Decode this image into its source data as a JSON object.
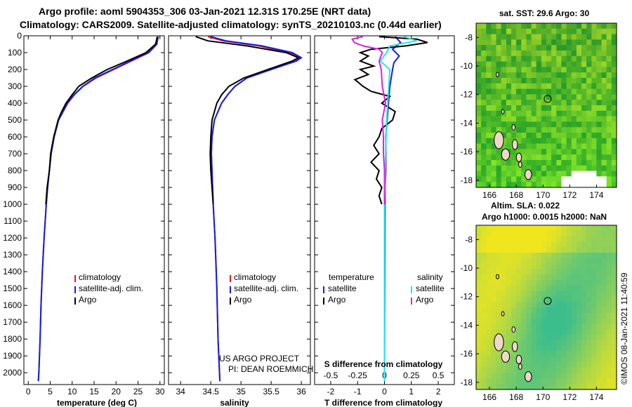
{
  "title_line1": "Argo profile: aoml 5904353_306 03-Jan-2021 12.31S 170.25E (NRT data)",
  "title_line2": "Climatology: CARS2009. Satellite-adjusted climatology: synTS_20210103.nc (0.44d earlier)",
  "credit": "©IMOS 08-Jan-2021 11:40:59",
  "project_line1": "US ARGO PROJECT",
  "project_line2": "PI: DEAN ROEMMICH",
  "colors": {
    "argo": "#000000",
    "climatology": "#e8182a",
    "satellite": "#1020e0",
    "sal_satellite": "#20e8f0",
    "sal_argo": "#e020e0",
    "marker": "#000000"
  },
  "chart_data": [
    {
      "type": "line",
      "name": "temperature",
      "xlabel": "temperature (deg C)",
      "xlim": [
        -1,
        31
      ],
      "xticks": [
        0,
        5,
        10,
        15,
        20,
        25,
        30
      ],
      "ylim": [
        2070,
        0
      ],
      "yticks": [
        0,
        100,
        200,
        300,
        400,
        500,
        600,
        700,
        800,
        900,
        1000,
        1100,
        1200,
        1300,
        1400,
        1500,
        1600,
        1700,
        1800,
        1900,
        2000
      ],
      "legend": [
        "climatology",
        "satellite-adj. clim.",
        "Argo"
      ],
      "series": [
        {
          "name": "climatology",
          "color_key": "climatology",
          "depth": [
            5,
            50,
            100,
            150,
            200,
            250,
            300,
            350,
            400,
            500,
            600,
            700,
            800,
            900,
            1000,
            1200,
            1400,
            1600,
            1800,
            2000,
            2050
          ],
          "values": [
            29.6,
            29.3,
            27.5,
            23.5,
            19.5,
            15.5,
            12.5,
            10.5,
            9.0,
            6.9,
            5.9,
            5.2,
            4.8,
            4.4,
            4.1,
            3.6,
            3.2,
            2.9,
            2.7,
            2.4,
            2.3
          ]
        },
        {
          "name": "satellite-adj. clim.",
          "color_key": "satellite",
          "depth": [
            5,
            50,
            100,
            150,
            200,
            250,
            300,
            350,
            400,
            500,
            600,
            700,
            800,
            900,
            1000,
            1200,
            1400,
            1600,
            1800,
            2000,
            2050
          ],
          "values": [
            29.6,
            29.2,
            27.3,
            23.2,
            19.2,
            15.2,
            12.4,
            10.4,
            8.9,
            6.9,
            5.9,
            5.2,
            4.8,
            4.4,
            4.1,
            3.6,
            3.2,
            2.9,
            2.7,
            2.4,
            2.3
          ]
        },
        {
          "name": "Argo",
          "color_key": "argo",
          "depth": [
            5,
            50,
            100,
            150,
            200,
            250,
            300,
            350,
            400,
            450,
            500,
            600,
            700,
            800,
            900,
            1000
          ],
          "values": [
            29.4,
            29.0,
            26.8,
            22.5,
            18.0,
            14.5,
            11.5,
            10.0,
            8.6,
            7.6,
            6.8,
            5.8,
            5.1,
            4.8,
            4.3,
            4.0
          ]
        }
      ]
    },
    {
      "type": "line",
      "name": "salinity",
      "xlabel": "salinity",
      "xlim": [
        33.8,
        36.15
      ],
      "xticks": [
        34,
        34.5,
        35,
        35.5,
        36
      ],
      "xtick_labels": [
        "34",
        "34.5",
        "35",
        "35.5",
        "36"
      ],
      "ylim": [
        2070,
        0
      ],
      "legend": [
        "climatology",
        "satellite-adj. clim.",
        "Argo"
      ],
      "series": [
        {
          "name": "climatology",
          "color_key": "climatology",
          "depth": [
            5,
            30,
            60,
            100,
            130,
            150,
            200,
            250,
            300,
            350,
            400,
            500,
            600,
            700,
            800,
            1000,
            1200,
            1500,
            1800,
            2050
          ],
          "values": [
            34.45,
            34.7,
            35.3,
            35.8,
            35.98,
            35.9,
            35.5,
            35.1,
            34.9,
            34.78,
            34.68,
            34.56,
            34.52,
            34.51,
            34.52,
            34.54,
            34.57,
            34.6,
            34.62,
            34.65
          ]
        },
        {
          "name": "satellite-adj. clim.",
          "color_key": "satellite",
          "depth": [
            5,
            30,
            60,
            100,
            130,
            150,
            200,
            250,
            300,
            350,
            400,
            500,
            600,
            700,
            800,
            1000,
            1200,
            1500,
            1800,
            2050
          ],
          "values": [
            34.5,
            34.75,
            35.35,
            35.85,
            36.0,
            35.92,
            35.5,
            35.1,
            34.9,
            34.78,
            34.68,
            34.56,
            34.52,
            34.51,
            34.52,
            34.54,
            34.57,
            34.6,
            34.62,
            34.65
          ]
        },
        {
          "name": "Argo",
          "color_key": "argo",
          "depth": [
            5,
            30,
            60,
            100,
            130,
            150,
            200,
            250,
            300,
            350,
            400,
            500,
            600,
            700,
            800,
            900,
            1000
          ],
          "values": [
            34.25,
            34.45,
            35.1,
            35.75,
            35.95,
            35.85,
            35.45,
            35.05,
            34.8,
            34.68,
            34.6,
            34.52,
            34.5,
            34.49,
            34.5,
            34.52,
            34.54
          ]
        }
      ]
    },
    {
      "type": "line",
      "name": "difference",
      "xlabel": "T difference from climatology",
      "xlabel_top": "S difference from climatology",
      "xlim": [
        -2.6,
        2.6
      ],
      "xticks": [
        -2,
        -1,
        0,
        1,
        2
      ],
      "s_ticks": [
        -0.5,
        -0.25,
        0,
        0.25,
        0.5
      ],
      "s_tick_labels": [
        "-0.5",
        "-0.25",
        "0",
        "0.25",
        "0.5"
      ],
      "ylim": [
        2070,
        0
      ],
      "legend_left_title": "temperature",
      "legend_right_title": "salinity",
      "legend_left": [
        "satellite",
        "Argo"
      ],
      "legend_right": [
        "satellite",
        "Argo"
      ],
      "series": [
        {
          "name": "T satellite",
          "color_key": "satellite",
          "depth": [
            5,
            40,
            80,
            120,
            160,
            200,
            300,
            400,
            500,
            600,
            700,
            800,
            900,
            1000,
            1500,
            2050
          ],
          "values": [
            0.4,
            0.6,
            0.3,
            0.55,
            0.35,
            0.3,
            0.2,
            0.15,
            0.1,
            0.05,
            0.05,
            0.05,
            0.02,
            0.02,
            0.01,
            0.0
          ]
        },
        {
          "name": "T Argo",
          "color_key": "argo",
          "depth": [
            5,
            20,
            40,
            60,
            80,
            100,
            120,
            150,
            180,
            200,
            230,
            260,
            300,
            330,
            360,
            400,
            450,
            500,
            550,
            600,
            650,
            700,
            750,
            800,
            850,
            900,
            950,
            1000
          ],
          "values": [
            -0.2,
            1.2,
            1.6,
            0.8,
            -0.5,
            -0.9,
            -0.6,
            -0.9,
            -0.4,
            -0.9,
            -0.6,
            -1.1,
            -0.8,
            -0.5,
            0.2,
            -0.1,
            0.4,
            0.3,
            -0.1,
            -0.2,
            -0.4,
            -0.2,
            -0.5,
            -0.2,
            -0.3,
            -0.1,
            -0.2,
            -0.1
          ]
        },
        {
          "name": "S satellite",
          "color_key": "sal_satellite",
          "depth": [
            5,
            30,
            60,
            100,
            150,
            200,
            300,
            400,
            500,
            700,
            1000,
            1500,
            2050
          ],
          "values": [
            0.18,
            0.3,
            0.05,
            0.02,
            -0.04,
            0.05,
            0.04,
            0.03,
            0.02,
            0.01,
            0.0,
            0.0,
            0.0
          ]
        },
        {
          "name": "S Argo",
          "color_key": "sal_argo",
          "depth": [
            5,
            20,
            40,
            60,
            80,
            100,
            150,
            200,
            300,
            400,
            500,
            600,
            700,
            800,
            900,
            1000
          ],
          "values": [
            -0.2,
            -0.3,
            -0.28,
            -0.2,
            -0.05,
            -0.02,
            -0.05,
            -0.03,
            -0.02,
            0.01,
            -0.02,
            -0.01,
            -0.01,
            0.0,
            0.0,
            0.0
          ]
        }
      ]
    },
    {
      "type": "heatmap",
      "name": "sat-sst",
      "title": "sat. SST: 29.6 Argo: 30",
      "xticks": [
        166,
        168,
        170,
        172,
        174
      ],
      "yticks": [
        -8,
        -10,
        -12,
        -14,
        -16,
        -18
      ],
      "xlim": [
        165.0,
        175.5
      ],
      "ylim": [
        -18.5,
        -7.0
      ],
      "marker": [
        170.35,
        -12.3
      ]
    },
    {
      "type": "heatmap",
      "name": "altim-sla",
      "title1": "Altim. SLA: 0.022",
      "title2": "Argo h1000: 0.0015 h2000: NaN",
      "xticks": [
        166,
        168,
        170,
        172,
        174
      ],
      "yticks": [
        -8,
        -10,
        -12,
        -14,
        -16,
        -18
      ],
      "xlim": [
        165.0,
        175.5
      ],
      "ylim": [
        -18.5,
        -7.0
      ],
      "marker": [
        170.35,
        -12.3
      ]
    }
  ]
}
